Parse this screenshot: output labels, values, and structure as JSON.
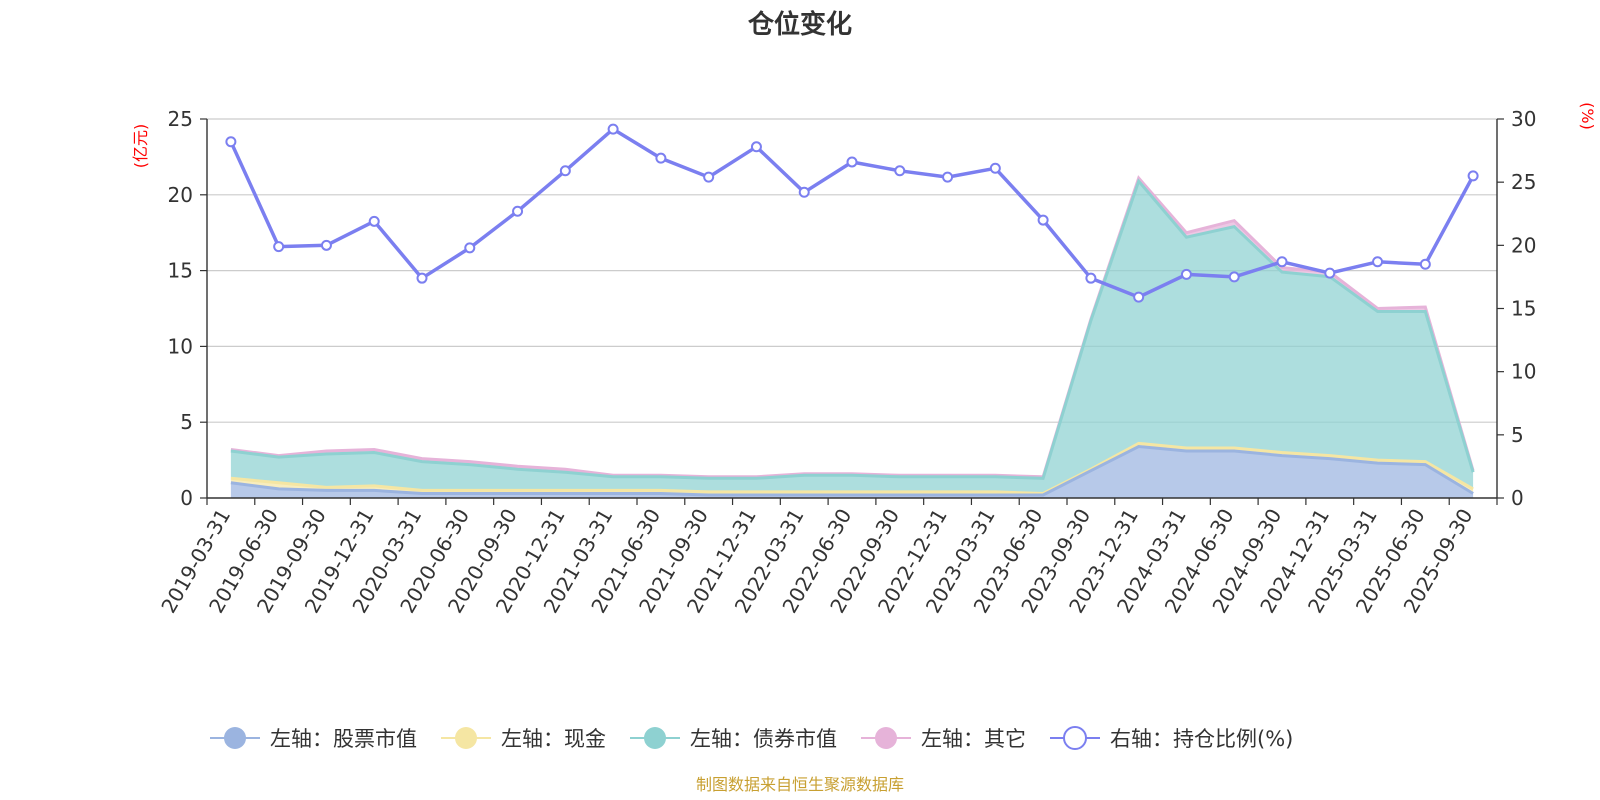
{
  "chart_data": {
    "type": "area",
    "title": "仓位变化",
    "source_note": "制图数据来自恒生聚源数据库",
    "y_left": {
      "unit": "(亿元)",
      "ylim": [
        0,
        25
      ],
      "ticks": [
        0,
        5,
        10,
        15,
        20,
        25
      ]
    },
    "y_right": {
      "unit": "(%)",
      "ylim": [
        0,
        30
      ],
      "ticks": [
        0,
        5,
        10,
        15,
        20,
        25,
        30
      ]
    },
    "grid": true,
    "legend_position": "bottom",
    "categories": [
      "2019-03-31",
      "2019-06-30",
      "2019-09-30",
      "2019-12-31",
      "2020-03-31",
      "2020-06-30",
      "2020-09-30",
      "2020-12-31",
      "2021-03-31",
      "2021-06-30",
      "2021-09-30",
      "2021-12-31",
      "2022-03-31",
      "2022-06-30",
      "2022-09-30",
      "2022-12-31",
      "2023-03-31",
      "2023-06-30",
      "2023-09-30",
      "2023-12-31",
      "2024-03-31",
      "2024-06-30",
      "2024-09-30",
      "2024-12-31",
      "2025-03-31",
      "2025-06-30",
      "2025-09-30"
    ],
    "series": [
      {
        "name": "左轴：股票市值",
        "axis": "left",
        "stacked": true,
        "color": "#9bb4e0",
        "values": [
          1.0,
          0.6,
          0.5,
          0.5,
          0.3,
          0.3,
          0.3,
          0.3,
          0.3,
          0.3,
          0.2,
          0.2,
          0.2,
          0.2,
          0.2,
          0.2,
          0.2,
          0.2,
          1.8,
          3.4,
          3.1,
          3.1,
          2.8,
          2.6,
          2.3,
          2.2,
          0.3
        ]
      },
      {
        "name": "左轴：现金",
        "axis": "left",
        "stacked": true,
        "color": "#f5e6a3",
        "values": [
          0.3,
          0.4,
          0.2,
          0.3,
          0.2,
          0.2,
          0.2,
          0.2,
          0.2,
          0.2,
          0.2,
          0.2,
          0.2,
          0.2,
          0.2,
          0.2,
          0.2,
          0.1,
          0.1,
          0.2,
          0.2,
          0.2,
          0.2,
          0.2,
          0.2,
          0.2,
          0.3
        ]
      },
      {
        "name": "左轴：债券市值",
        "axis": "left",
        "stacked": true,
        "color": "#8ed1d1",
        "values": [
          1.8,
          1.7,
          2.2,
          2.2,
          1.9,
          1.7,
          1.4,
          1.2,
          0.9,
          0.9,
          0.9,
          0.9,
          1.1,
          1.1,
          1.0,
          1.0,
          1.0,
          1.0,
          9.8,
          17.3,
          13.9,
          14.6,
          11.9,
          11.8,
          9.8,
          9.9,
          1.1
        ]
      },
      {
        "name": "左轴：其它",
        "axis": "left",
        "stacked": true,
        "color": "#e6b3d9",
        "values": [
          0.1,
          0.1,
          0.2,
          0.2,
          0.2,
          0.2,
          0.2,
          0.2,
          0.1,
          0.1,
          0.1,
          0.1,
          0.1,
          0.1,
          0.1,
          0.1,
          0.1,
          0.1,
          0.1,
          0.2,
          0.3,
          0.4,
          0.3,
          0.3,
          0.2,
          0.3,
          0.1
        ]
      },
      {
        "name": "右轴：持仓比例(%)",
        "axis": "right",
        "type": "line",
        "color": "#7b7ff0",
        "values": [
          28.2,
          19.9,
          20.0,
          21.9,
          17.4,
          19.8,
          22.7,
          25.9,
          29.2,
          26.9,
          25.4,
          27.8,
          24.2,
          26.6,
          25.9,
          25.4,
          26.1,
          22.0,
          17.4,
          15.9,
          17.7,
          17.5,
          18.7,
          17.8,
          18.7,
          18.5,
          25.5
        ]
      }
    ]
  }
}
